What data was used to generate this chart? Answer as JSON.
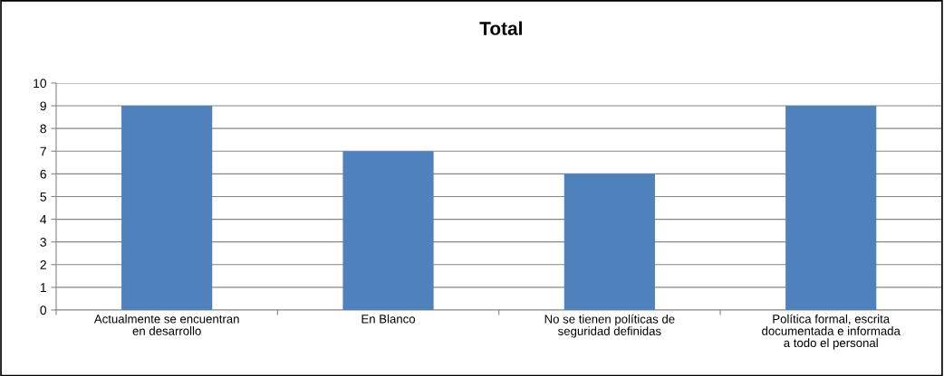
{
  "chart_data": {
    "type": "bar",
    "title": "Total",
    "categories": [
      "Actualmente se encuentran\nen desarrollo",
      "En Blanco",
      "No se tienen políticas de\nseguridad definidas",
      "Política formal, escrita\ndocumentada e informada\na todo el personal"
    ],
    "values": [
      9,
      7,
      6,
      9
    ],
    "color": "#4f81bd",
    "ylim": [
      0,
      10
    ],
    "yticks": [
      0,
      1,
      2,
      3,
      4,
      5,
      6,
      7,
      8,
      9,
      10
    ],
    "grid": "y",
    "legend": false
  }
}
